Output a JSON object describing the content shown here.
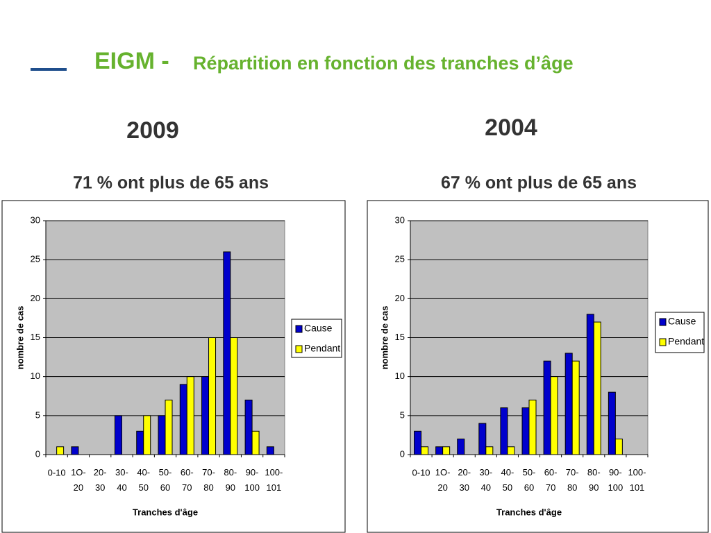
{
  "slide": {
    "title_lead": "EIGM -",
    "title": "Répartition en fonction des tranches d’âge"
  },
  "chart_data": [
    {
      "type": "bar",
      "heading": "2009",
      "title": "71 % ont plus de 65 ans",
      "x_label": "Tranches d'âge",
      "y_label": "nombre de cas",
      "categories": [
        "0-10",
        "1O-20",
        "20-30",
        "30-40",
        "40-50",
        "50-60",
        "60-70",
        "70-80",
        "80-90",
        "90-100",
        "100-101"
      ],
      "series": [
        {
          "name": "Cause",
          "color": "#0000cc",
          "values": [
            0,
            1,
            0,
            5,
            3,
            5,
            9,
            10,
            26,
            7,
            1
          ]
        },
        {
          "name": "Pendant",
          "color": "#ffff00",
          "values": [
            1,
            0,
            0,
            0,
            5,
            7,
            10,
            15,
            15,
            3,
            0
          ]
        }
      ],
      "ylim": [
        0,
        30
      ],
      "yticks": [
        0,
        5,
        10,
        15,
        20,
        25,
        30
      ],
      "grid": true,
      "legend": "right"
    },
    {
      "type": "bar",
      "heading": "2004",
      "title": "67 % ont plus de 65 ans",
      "x_label": "Tranches d'âge",
      "y_label": "nombre de cas",
      "categories": [
        "0-10",
        "1O-20",
        "20-30",
        "30-40",
        "40-50",
        "50-60",
        "60-70",
        "70-80",
        "80-90",
        "90-100",
        "100-101"
      ],
      "series": [
        {
          "name": "Cause",
          "color": "#0000cc",
          "values": [
            3,
            1,
            2,
            4,
            6,
            6,
            12,
            13,
            18,
            8,
            0
          ]
        },
        {
          "name": "Pendant",
          "color": "#ffff00",
          "values": [
            1,
            1,
            0,
            1,
            1,
            7,
            10,
            12,
            17,
            2,
            0
          ]
        }
      ],
      "ylim": [
        0,
        30
      ],
      "yticks": [
        0,
        5,
        10,
        15,
        20,
        25,
        30
      ],
      "grid": true,
      "legend": "right"
    }
  ]
}
